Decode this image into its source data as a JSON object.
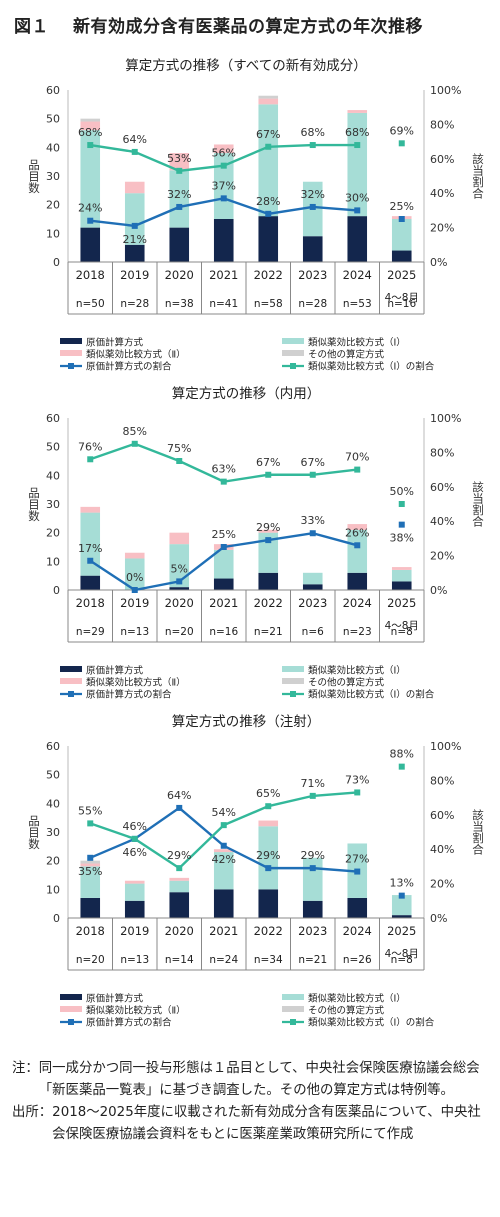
{
  "figure": {
    "number": "図１",
    "title": "新有効成分含有医薬品の算定方式の年次推移"
  },
  "colors": {
    "cost": "#13264d",
    "similar1": "#a6ddd6",
    "similar2": "#f8bfc4",
    "other": "#d0d0d0",
    "cost_line": "#1f6fb6",
    "similar1_line": "#33b89a"
  },
  "legend": {
    "cost": "原価計算方式",
    "similar1": "類似薬効比較方式（Ⅰ）",
    "similar2": "類似薬効比較方式（Ⅱ）",
    "other": "その他の算定方式",
    "cost_ratio": "原価計算方式の割合",
    "similar1_ratio": "類似薬効比較方式（Ⅰ）の割合"
  },
  "chart_data": [
    {
      "type": "bar",
      "title": "算定方式の推移（すべての新有効成分）",
      "ylabel": "品目数",
      "y2label": "該当割合",
      "ylim": [
        0,
        60
      ],
      "y2lim": [
        0,
        100
      ],
      "yticks": [
        "0",
        "10",
        "20",
        "30",
        "40",
        "50",
        "60"
      ],
      "y2ticks": [
        "0%",
        "20%",
        "40%",
        "60%",
        "80%",
        "100%"
      ],
      "categories": [
        "2018",
        "2019",
        "2020",
        "2021",
        "2022",
        "2023",
        "2024",
        "2025"
      ],
      "category_sub": [
        "",
        "",
        "",
        "",
        "",
        "",
        "",
        "4～8月"
      ],
      "n_labels": [
        "n=50",
        "n=28",
        "n=38",
        "n=41",
        "n=58",
        "n=28",
        "n=53",
        "n=16"
      ],
      "series": [
        {
          "key": "cost",
          "name": "原価計算方式",
          "values": [
            12,
            6,
            12,
            15,
            16,
            9,
            16,
            4
          ]
        },
        {
          "key": "similar1",
          "name": "類似薬効比較方式（Ⅰ）",
          "values": [
            34,
            18,
            20,
            23,
            39,
            19,
            36,
            11
          ]
        },
        {
          "key": "similar2",
          "name": "類似薬効比較方式（Ⅱ）",
          "values": [
            3,
            4,
            6,
            3,
            2,
            0,
            1,
            1
          ]
        },
        {
          "key": "other",
          "name": "その他の算定方式",
          "values": [
            1,
            0,
            0,
            0,
            1,
            0,
            0,
            0
          ]
        }
      ],
      "lines": [
        {
          "key": "cost_ratio",
          "name": "原価計算方式の割合",
          "values": [
            24,
            21,
            32,
            37,
            28,
            32,
            30,
            25
          ],
          "labels": [
            "24%",
            "21%",
            "32%",
            "37%",
            "28%",
            "32%",
            "30%",
            "25%"
          ],
          "label_pos": [
            "above",
            "below",
            "above",
            "above",
            "above",
            "above",
            "above",
            "above"
          ]
        },
        {
          "key": "similar1_ratio",
          "name": "類似薬効比較方式（Ⅰ）の割合",
          "values": [
            68,
            64,
            53,
            56,
            67,
            68,
            68,
            69
          ],
          "labels": [
            "68%",
            "64%",
            "53%",
            "56%",
            "67%",
            "68%",
            "68%",
            "69%"
          ],
          "label_pos": [
            "above",
            "above",
            "above",
            "above",
            "above",
            "above",
            "above",
            "above"
          ]
        }
      ]
    },
    {
      "type": "bar",
      "title": "算定方式の推移（内用）",
      "ylabel": "品目数",
      "y2label": "該当割合",
      "ylim": [
        0,
        60
      ],
      "y2lim": [
        0,
        100
      ],
      "yticks": [
        "0",
        "10",
        "20",
        "30",
        "40",
        "50",
        "60"
      ],
      "y2ticks": [
        "0%",
        "20%",
        "40%",
        "60%",
        "80%",
        "100%"
      ],
      "categories": [
        "2018",
        "2019",
        "2020",
        "2021",
        "2022",
        "2023",
        "2024",
        "2025"
      ],
      "category_sub": [
        "",
        "",
        "",
        "",
        "",
        "",
        "",
        "4～8月"
      ],
      "n_labels": [
        "n=29",
        "n=13",
        "n=20",
        "n=16",
        "n=21",
        "n=6",
        "n=23",
        "n=8"
      ],
      "series": [
        {
          "key": "cost",
          "name": "原価計算方式",
          "values": [
            5,
            0,
            1,
            4,
            6,
            2,
            6,
            3
          ]
        },
        {
          "key": "similar1",
          "name": "類似薬効比較方式（Ⅰ）",
          "values": [
            22,
            11,
            15,
            10,
            14,
            4,
            15,
            4
          ]
        },
        {
          "key": "similar2",
          "name": "類似薬効比較方式（Ⅱ）",
          "values": [
            2,
            2,
            4,
            2,
            1,
            0,
            2,
            1
          ]
        },
        {
          "key": "other",
          "name": "その他の算定方式",
          "values": [
            0,
            0,
            0,
            0,
            0,
            0,
            0,
            0
          ]
        }
      ],
      "lines": [
        {
          "key": "cost_ratio",
          "name": "原価計算方式の割合",
          "values": [
            17,
            0,
            5,
            25,
            29,
            33,
            26,
            38
          ],
          "labels": [
            "17%",
            "0%",
            "5%",
            "25%",
            "29%",
            "33%",
            "26%",
            "38%"
          ],
          "label_pos": [
            "above",
            "above",
            "above",
            "above",
            "above",
            "above",
            "above",
            "below"
          ]
        },
        {
          "key": "similar1_ratio",
          "name": "類似薬効比較方式（Ⅰ）の割合",
          "values": [
            76,
            85,
            75,
            63,
            67,
            67,
            70,
            50
          ],
          "labels": [
            "76%",
            "85%",
            "75%",
            "63%",
            "67%",
            "67%",
            "70%",
            "50%"
          ],
          "label_pos": [
            "above",
            "above",
            "above",
            "above",
            "above",
            "above",
            "above",
            "above"
          ]
        }
      ]
    },
    {
      "type": "bar",
      "title": "算定方式の推移（注射）",
      "ylabel": "品目数",
      "y2label": "該当割合",
      "ylim": [
        0,
        60
      ],
      "y2lim": [
        0,
        100
      ],
      "yticks": [
        "0",
        "10",
        "20",
        "30",
        "40",
        "50",
        "60"
      ],
      "y2ticks": [
        "0%",
        "20%",
        "40%",
        "60%",
        "80%",
        "100%"
      ],
      "categories": [
        "2018",
        "2019",
        "2020",
        "2021",
        "2022",
        "2023",
        "2024",
        "2025"
      ],
      "category_sub": [
        "",
        "",
        "",
        "",
        "",
        "",
        "",
        "4～8月"
      ],
      "n_labels": [
        "n=20",
        "n=13",
        "n=14",
        "n=24",
        "n=34",
        "n=21",
        "n=26",
        "n=8"
      ],
      "series": [
        {
          "key": "cost",
          "name": "原価計算方式",
          "values": [
            7,
            6,
            9,
            10,
            10,
            6,
            7,
            1
          ]
        },
        {
          "key": "similar1",
          "name": "類似薬効比較方式（Ⅰ）",
          "values": [
            11,
            6,
            4,
            13,
            22,
            15,
            19,
            7
          ]
        },
        {
          "key": "similar2",
          "name": "類似薬効比較方式（Ⅱ）",
          "values": [
            1,
            1,
            1,
            1,
            2,
            0,
            0,
            0
          ]
        },
        {
          "key": "other",
          "name": "その他の算定方式",
          "values": [
            1,
            0,
            0,
            0,
            0,
            0,
            0,
            0
          ]
        }
      ],
      "lines": [
        {
          "key": "cost_ratio",
          "name": "原価計算方式の割合",
          "values": [
            35,
            46,
            64,
            42,
            29,
            29,
            27,
            13
          ],
          "labels": [
            "35%",
            "46%",
            "64%",
            "42%",
            "29%",
            "29%",
            "27%",
            "13%"
          ],
          "label_pos": [
            "below",
            "below",
            "above",
            "below",
            "above",
            "above",
            "above",
            "above"
          ]
        },
        {
          "key": "similar1_ratio",
          "name": "類似薬効比較方式（Ⅰ）の割合",
          "values": [
            55,
            46,
            29,
            54,
            65,
            71,
            73,
            88
          ],
          "labels": [
            "55%",
            "46%",
            "29%",
            "54%",
            "65%",
            "71%",
            "73%",
            "88%"
          ],
          "label_pos": [
            "above",
            "above",
            "above",
            "above",
            "above",
            "above",
            "above",
            "above"
          ]
        }
      ]
    }
  ],
  "notes": [
    {
      "label": "注：",
      "text": "同一成分かつ同一投与形態は１品目として、中央社会保険医療協議会総会「新医薬品一覧表」に基づき調査した。その他の算定方式は特例等。"
    },
    {
      "label": "出所：",
      "text": "2018～2025年度に収載された新有効成分含有医薬品について、中央社会保険医療協議会資料をもとに医薬産業政策研究所にて作成"
    }
  ]
}
